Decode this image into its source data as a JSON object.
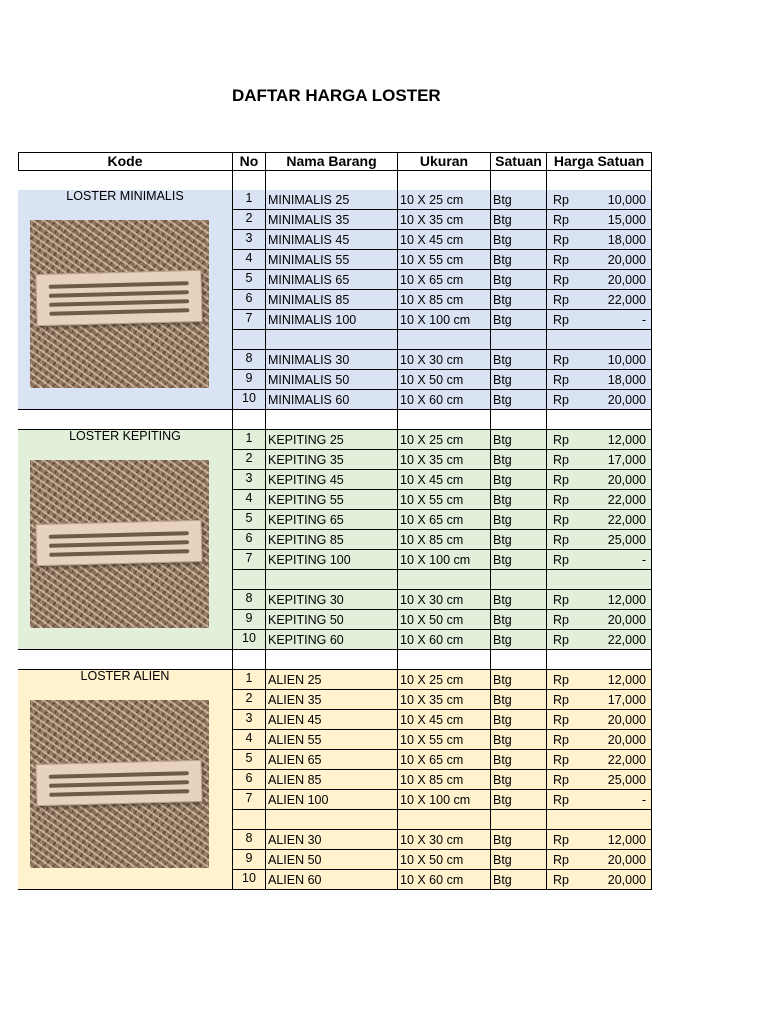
{
  "title": "DAFTAR HARGA LOSTER",
  "header": [
    "Kode",
    "No",
    "Nama Barang",
    "Ukuran",
    "Satuan",
    "Harga Satuan"
  ],
  "groups": [
    {
      "label": "LOSTER MINIMALIS",
      "rows": [
        {
          "no": 1,
          "name": "MINIMALIS 25",
          "size": "10 X 25 cm",
          "unit": "Btg",
          "currency": "Rp",
          "price": "10,000"
        },
        {
          "no": 2,
          "name": "MINIMALIS 35",
          "size": "10 X 35 cm",
          "unit": "Btg",
          "currency": "Rp",
          "price": "15,000"
        },
        {
          "no": 3,
          "name": "MINIMALIS 45",
          "size": "10 X 45 cm",
          "unit": "Btg",
          "currency": "Rp",
          "price": "18,000"
        },
        {
          "no": 4,
          "name": "MINIMALIS 55",
          "size": "10 X 55 cm",
          "unit": "Btg",
          "currency": "Rp",
          "price": "20,000"
        },
        {
          "no": 5,
          "name": "MINIMALIS 65",
          "size": "10 X 65 cm",
          "unit": "Btg",
          "currency": "Rp",
          "price": "20,000"
        },
        {
          "no": 6,
          "name": "MINIMALIS 85",
          "size": "10 X 85 cm",
          "unit": "Btg",
          "currency": "Rp",
          "price": "22,000"
        },
        {
          "no": 7,
          "name": "MINIMALIS 100",
          "size": "10 X 100 cm",
          "unit": "Btg",
          "currency": "Rp",
          "price": "-"
        },
        {
          "no": 8,
          "name": "MINIMALIS 30",
          "size": "10 X 30 cm",
          "unit": "Btg",
          "currency": "Rp",
          "price": "10,000"
        },
        {
          "no": 9,
          "name": "MINIMALIS 50",
          "size": "10 X 50 cm",
          "unit": "Btg",
          "currency": "Rp",
          "price": "18,000"
        },
        {
          "no": 10,
          "name": "MINIMALIS 60",
          "size": "10 X 60 cm",
          "unit": "Btg",
          "currency": "Rp",
          "price": "20,000"
        }
      ]
    },
    {
      "label": "LOSTER KEPITING",
      "rows": [
        {
          "no": 1,
          "name": "KEPITING 25",
          "size": "10 X 25 cm",
          "unit": "Btg",
          "currency": "Rp",
          "price": "12,000"
        },
        {
          "no": 2,
          "name": "KEPITING 35",
          "size": "10 X 35 cm",
          "unit": "Btg",
          "currency": "Rp",
          "price": "17,000"
        },
        {
          "no": 3,
          "name": "KEPITING 45",
          "size": "10 X 45 cm",
          "unit": "Btg",
          "currency": "Rp",
          "price": "20,000"
        },
        {
          "no": 4,
          "name": "KEPITING 55",
          "size": "10 X 55 cm",
          "unit": "Btg",
          "currency": "Rp",
          "price": "22,000"
        },
        {
          "no": 5,
          "name": "KEPITING 65",
          "size": "10 X 65 cm",
          "unit": "Btg",
          "currency": "Rp",
          "price": "22,000"
        },
        {
          "no": 6,
          "name": "KEPITING 85",
          "size": "10 X 85 cm",
          "unit": "Btg",
          "currency": "Rp",
          "price": "25,000"
        },
        {
          "no": 7,
          "name": "KEPITING 100",
          "size": "10 X 100 cm",
          "unit": "Btg",
          "currency": "Rp",
          "price": "-"
        },
        {
          "no": 8,
          "name": "KEPITING 30",
          "size": "10 X 30 cm",
          "unit": "Btg",
          "currency": "Rp",
          "price": "12,000"
        },
        {
          "no": 9,
          "name": "KEPITING 50",
          "size": "10 X 50 cm",
          "unit": "Btg",
          "currency": "Rp",
          "price": "20,000"
        },
        {
          "no": 10,
          "name": "KEPITING 60",
          "size": "10 X 60 cm",
          "unit": "Btg",
          "currency": "Rp",
          "price": "22,000"
        }
      ]
    },
    {
      "label": "LOSTER ALIEN",
      "rows": [
        {
          "no": 1,
          "name": "ALIEN 25",
          "size": "10 X 25 cm",
          "unit": "Btg",
          "currency": "Rp",
          "price": "12,000"
        },
        {
          "no": 2,
          "name": "ALIEN 35",
          "size": "10 X 35 cm",
          "unit": "Btg",
          "currency": "Rp",
          "price": "17,000"
        },
        {
          "no": 3,
          "name": "ALIEN 45",
          "size": "10 X 45 cm",
          "unit": "Btg",
          "currency": "Rp",
          "price": "20,000"
        },
        {
          "no": 4,
          "name": "ALIEN 55",
          "size": "10 X 55 cm",
          "unit": "Btg",
          "currency": "Rp",
          "price": "20,000"
        },
        {
          "no": 5,
          "name": "ALIEN 65",
          "size": "10 X 65 cm",
          "unit": "Btg",
          "currency": "Rp",
          "price": "22,000"
        },
        {
          "no": 6,
          "name": "ALIEN 85",
          "size": "10 X 85 cm",
          "unit": "Btg",
          "currency": "Rp",
          "price": "25,000"
        },
        {
          "no": 7,
          "name": "ALIEN 100",
          "size": "10 X 100 cm",
          "unit": "Btg",
          "currency": "Rp",
          "price": "-"
        },
        {
          "no": 8,
          "name": "ALIEN 30",
          "size": "10 X 30 cm",
          "unit": "Btg",
          "currency": "Rp",
          "price": "12,000"
        },
        {
          "no": 9,
          "name": "ALIEN 50",
          "size": "10 X 50 cm",
          "unit": "Btg",
          "currency": "Rp",
          "price": "20,000"
        },
        {
          "no": 10,
          "name": "ALIEN 60",
          "size": "10 X 60 cm",
          "unit": "Btg",
          "currency": "Rp",
          "price": "20,000"
        }
      ]
    }
  ]
}
